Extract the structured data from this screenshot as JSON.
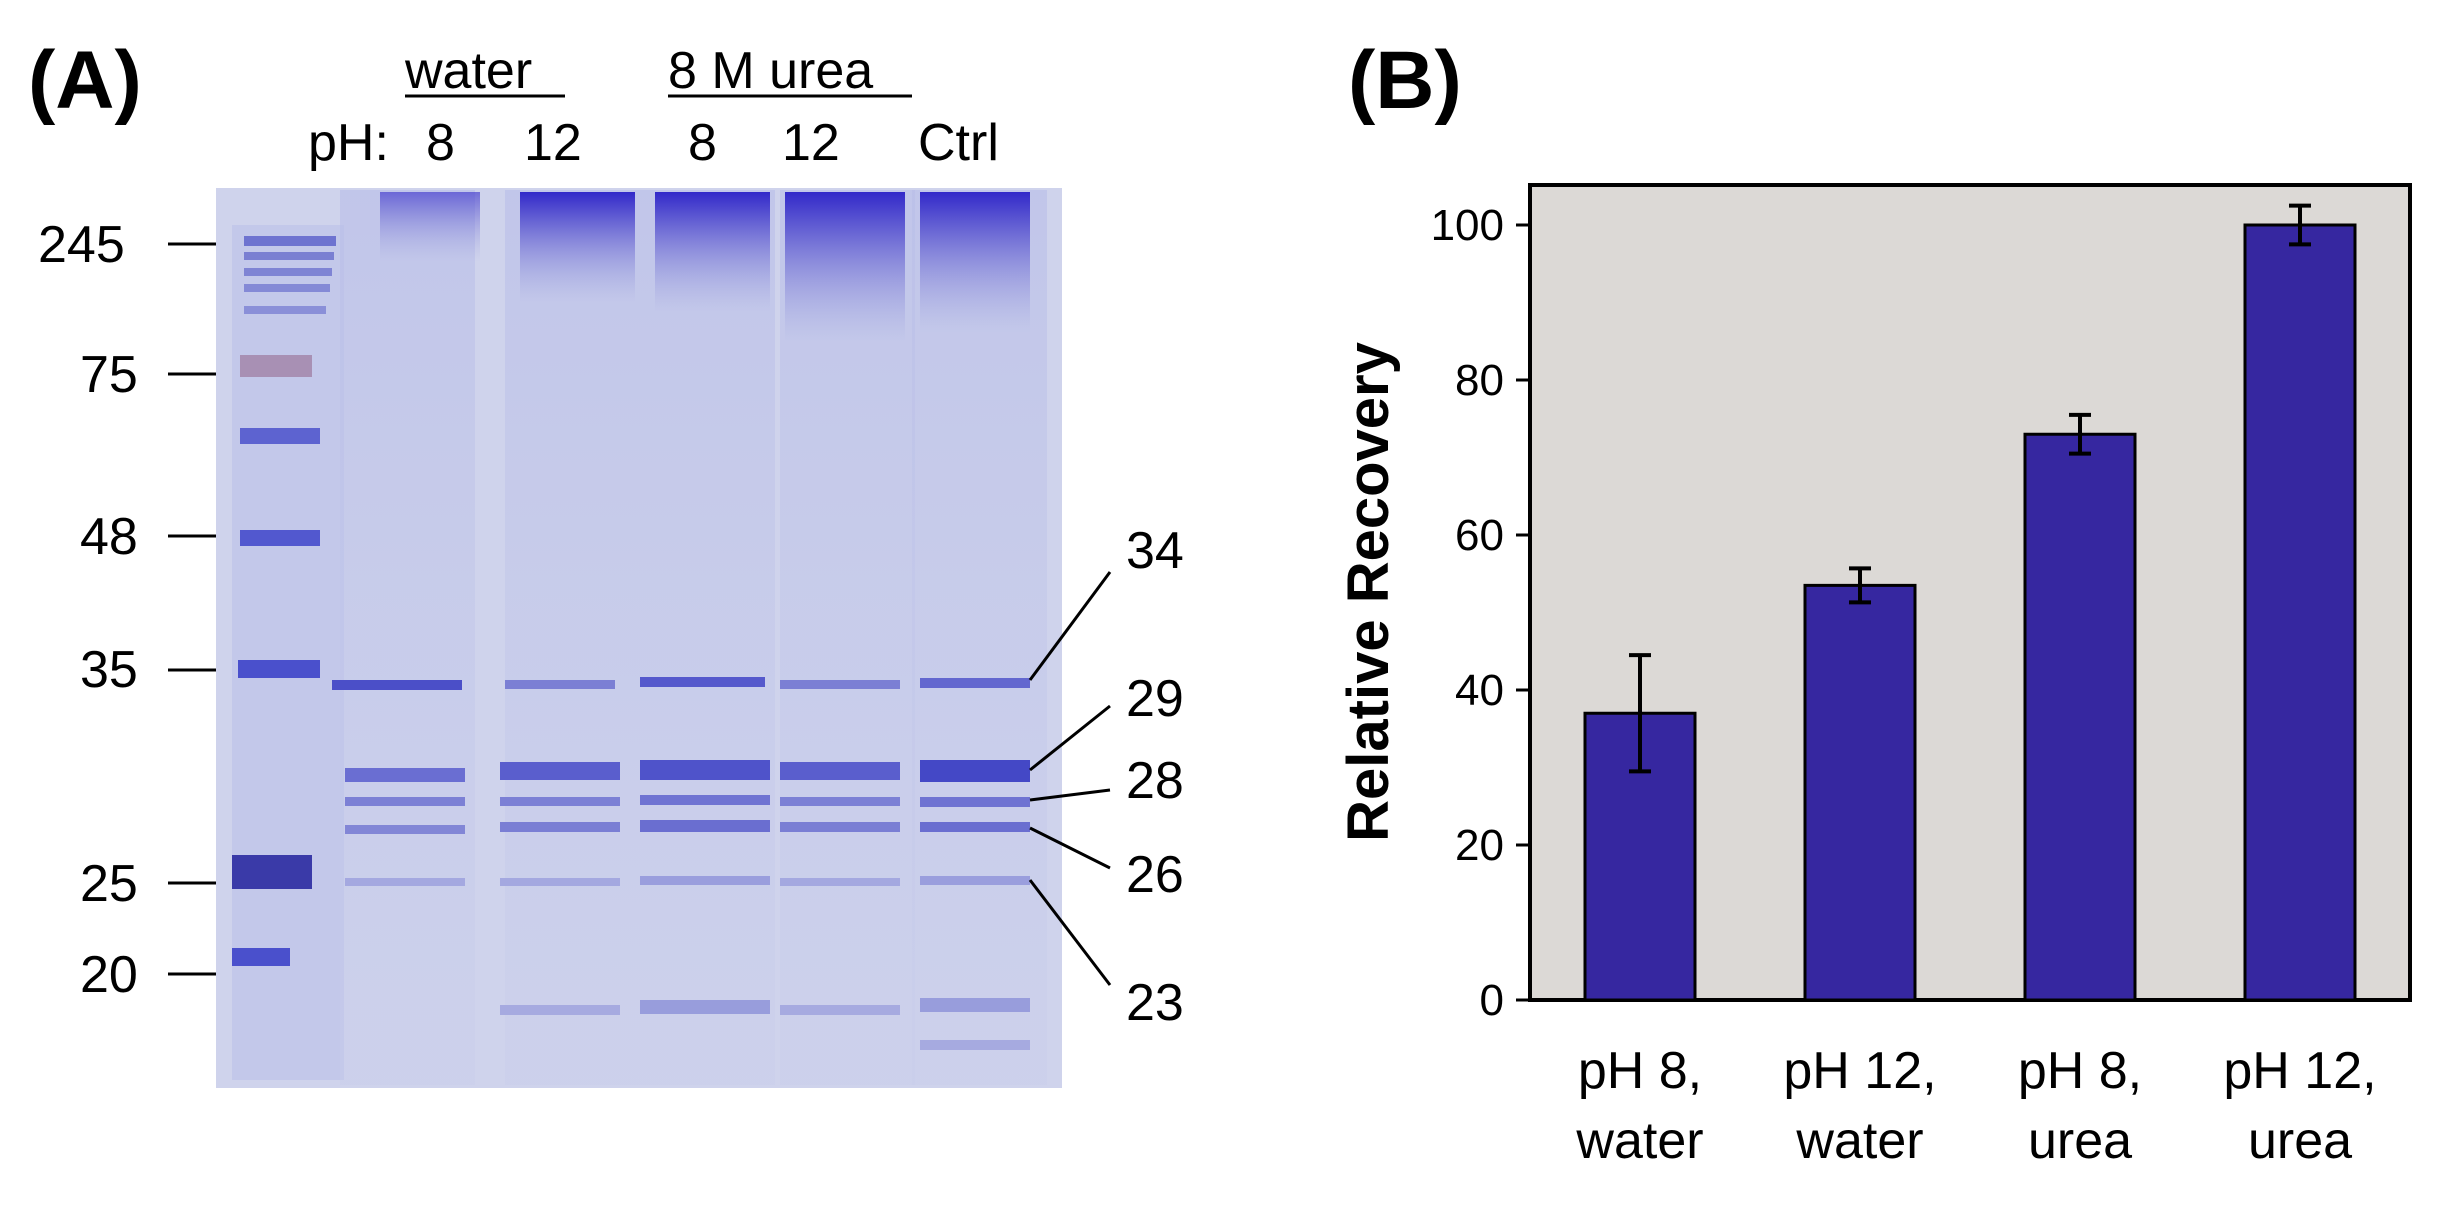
{
  "panel_a": {
    "label": "(A)",
    "groups": [
      "water",
      "8 M urea"
    ],
    "ph_prefix": "pH:",
    "lanes": [
      "8",
      "12",
      "8",
      "12",
      "Ctrl"
    ],
    "marker_sizes": [
      "245",
      "75",
      "48",
      "35",
      "25",
      "20"
    ],
    "band_labels": [
      "34",
      "29",
      "28",
      "26",
      "23"
    ],
    "colors": {
      "gel_bg": "#cfd3ec",
      "stain": "#3a35c0"
    }
  },
  "panel_b": {
    "label": "(B)"
  },
  "chart_data": {
    "type": "bar",
    "categories": [
      [
        "pH 8,",
        "water"
      ],
      [
        "pH 12,",
        "water"
      ],
      [
        "pH 8,",
        "urea"
      ],
      [
        "pH 12,",
        "urea"
      ]
    ],
    "values": [
      37,
      53.5,
      73,
      100
    ],
    "errors": [
      7.5,
      2.2,
      2.5,
      2.5
    ],
    "ylabel": "Relative Recovery",
    "ylim": [
      0,
      110
    ],
    "yticks": [
      0,
      20,
      40,
      60,
      80,
      100
    ],
    "grid": false,
    "colors": {
      "bar": "#3627a0",
      "plot_bg": "#dcd9d6"
    }
  }
}
